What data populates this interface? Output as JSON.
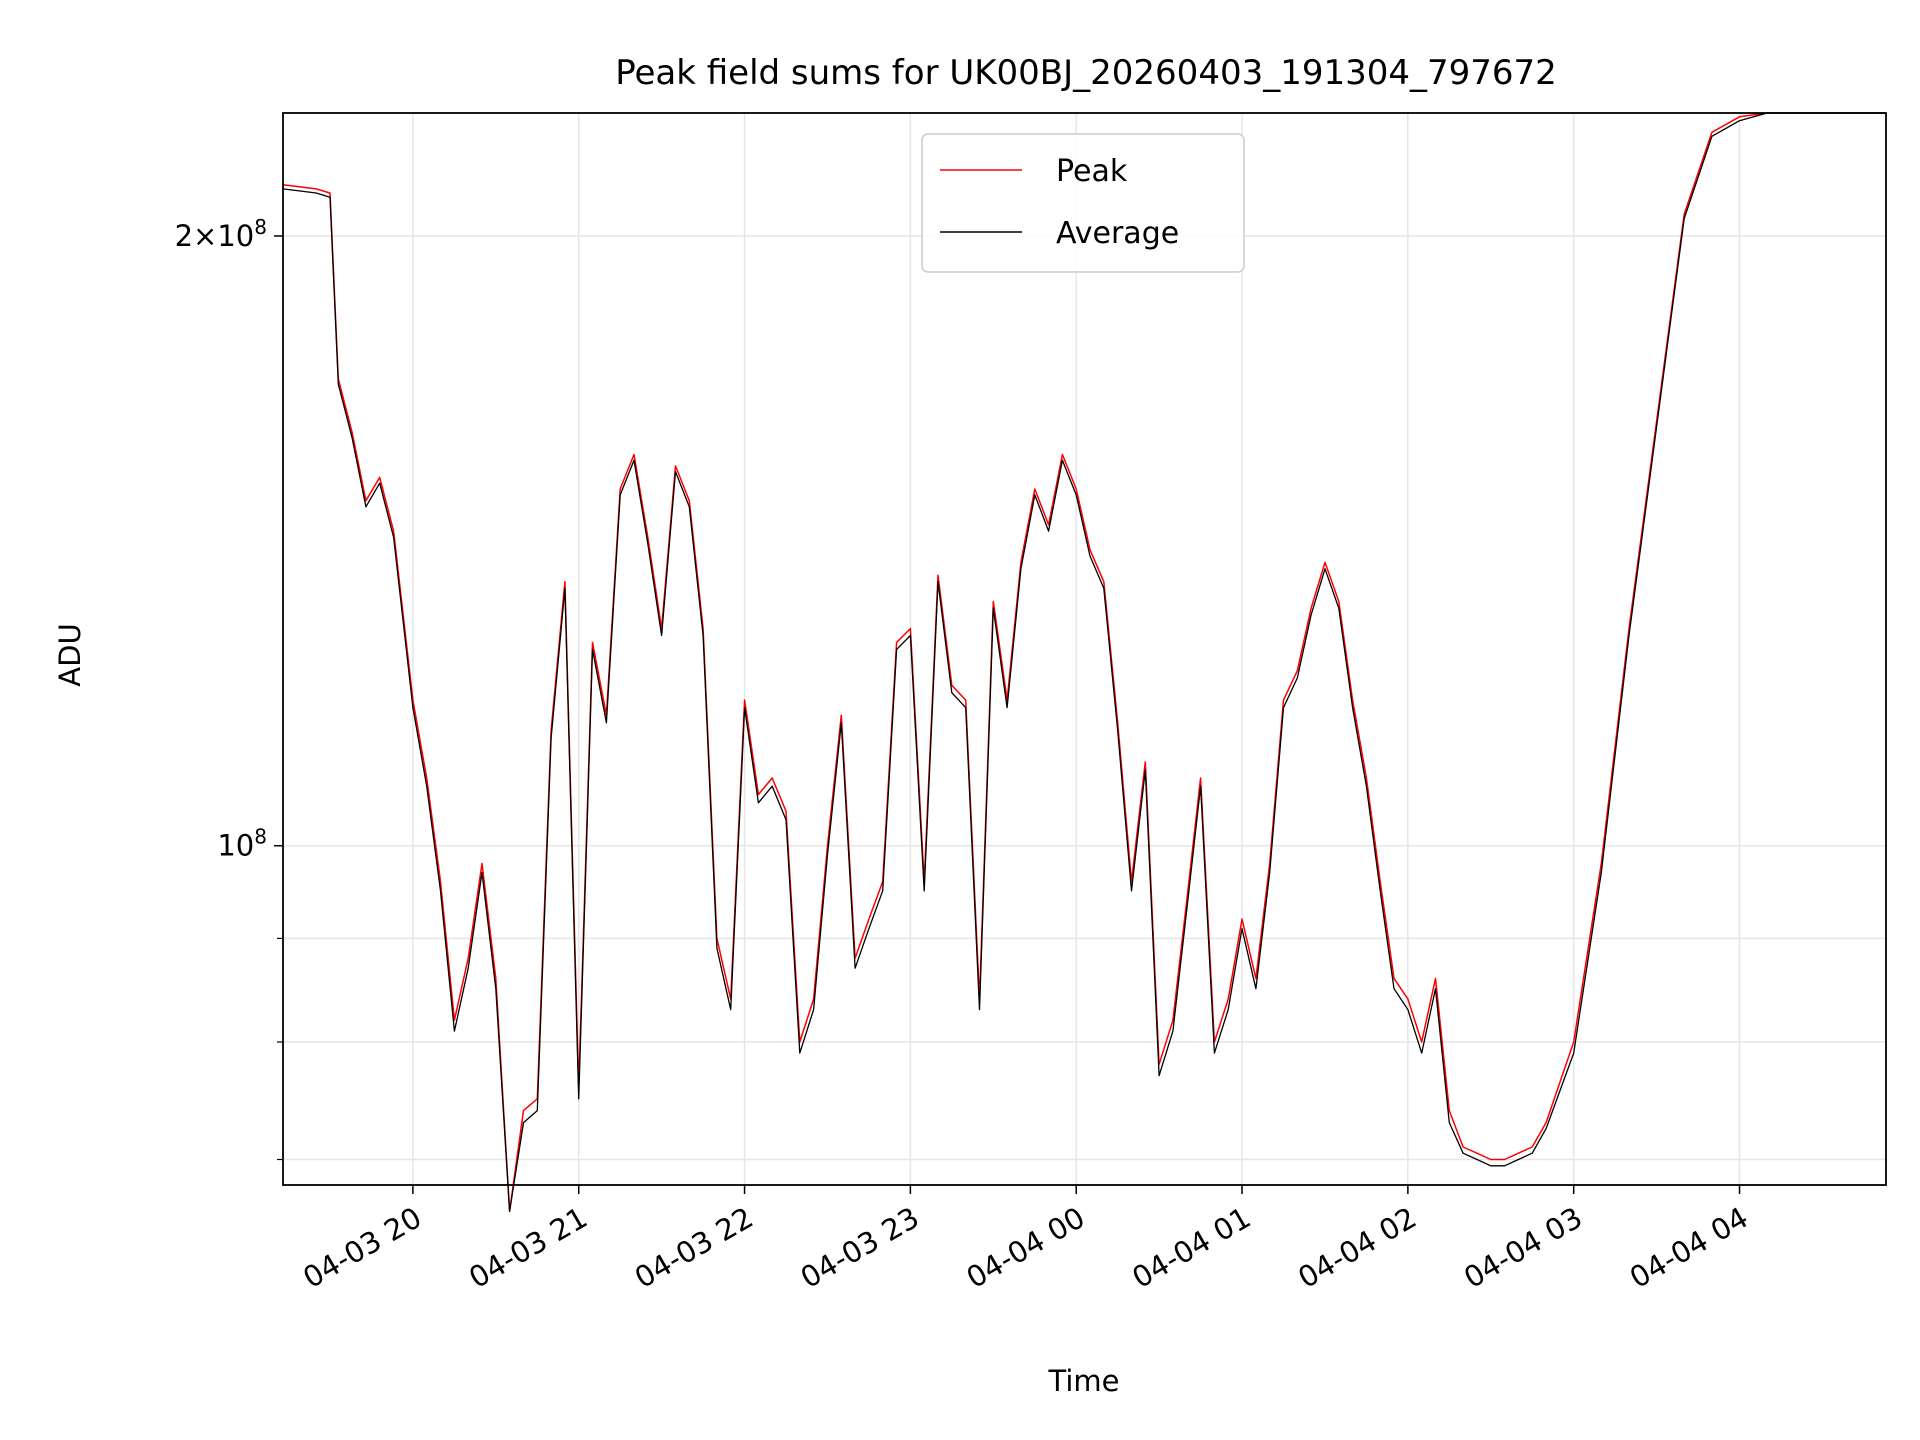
{
  "chart_data": {
    "type": "line",
    "title": "Peak field sums for UK00BJ_20260403_191304_797672",
    "xlabel": "Time",
    "ylabel": "ADU",
    "yscale": "log",
    "grid": true,
    "legend_position": "top-center",
    "xlim": [
      "2026-04-03 19:13",
      "2026-04-04 04:53"
    ],
    "ylim": [
      68000000,
      230000000
    ],
    "x_ticks": [
      "04-03 20",
      "04-03 21",
      "04-03 22",
      "04-03 23",
      "04-04 00",
      "04-04 01",
      "04-04 02",
      "04-04 03",
      "04-04 04"
    ],
    "y_tick_labels": [
      {
        "value": 100000000,
        "mantissa": "",
        "exp": "8"
      },
      {
        "value": 200000000,
        "mantissa": "2",
        "exp": "8"
      }
    ],
    "y_minor_ticks": [
      70000000,
      80000000,
      90000000
    ],
    "series": [
      {
        "name": "Peak",
        "color": "#ff0000",
        "x": [
          "19:13",
          "19:25",
          "19:30",
          "19:33",
          "19:38",
          "19:43",
          "19:48",
          "19:53",
          "20:00",
          "20:05",
          "20:10",
          "20:15",
          "20:20",
          "20:25",
          "20:30",
          "20:35",
          "20:40",
          "20:45",
          "20:50",
          "20:55",
          "21:00",
          "21:05",
          "21:10",
          "21:15",
          "21:20",
          "21:25",
          "21:30",
          "21:35",
          "21:40",
          "21:45",
          "21:50",
          "21:55",
          "22:00",
          "22:05",
          "22:10",
          "22:15",
          "22:20",
          "22:25",
          "22:30",
          "22:35",
          "22:40",
          "22:45",
          "22:50",
          "22:55",
          "23:00",
          "23:05",
          "23:10",
          "23:15",
          "23:20",
          "23:25",
          "23:30",
          "23:35",
          "23:40",
          "23:45",
          "23:50",
          "23:55",
          "00:00",
          "00:05",
          "00:10",
          "00:15",
          "00:20",
          "00:25",
          "00:30",
          "00:35",
          "00:40",
          "00:45",
          "00:50",
          "00:55",
          "01:00",
          "01:05",
          "01:10",
          "01:15",
          "01:20",
          "01:25",
          "01:30",
          "01:35",
          "01:40",
          "01:45",
          "01:50",
          "01:55",
          "02:00",
          "02:05",
          "02:10",
          "02:15",
          "02:20",
          "02:25",
          "02:30",
          "02:35",
          "02:40",
          "02:45",
          "02:50",
          "03:00",
          "03:10",
          "03:20",
          "03:30",
          "03:40",
          "03:50",
          "04:00",
          "04:10",
          "04:20",
          "04:30",
          "04:37",
          "04:43",
          "04:53"
        ],
        "y": [
          212000000,
          211000000,
          210000000,
          170000000,
          160000000,
          148000000,
          152000000,
          143000000,
          118000000,
          108000000,
          96000000,
          82000000,
          88000000,
          98000000,
          86000000,
          66000000,
          74000000,
          75000000,
          114000000,
          135000000,
          76000000,
          126000000,
          116000000,
          150000000,
          156000000,
          142000000,
          128000000,
          154000000,
          148000000,
          128000000,
          90000000,
          84000000,
          118000000,
          106000000,
          108000000,
          104000000,
          80000000,
          84000000,
          100000000,
          116000000,
          88000000,
          92000000,
          96000000,
          126000000,
          128000000,
          96000000,
          136000000,
          120000000,
          118000000,
          84000000,
          132000000,
          118000000,
          138000000,
          150000000,
          144000000,
          156000000,
          150000000,
          140000000,
          135000000,
          115000000,
          96000000,
          110000000,
          78000000,
          82000000,
          94000000,
          108000000,
          80000000,
          84000000,
          92000000,
          86000000,
          98000000,
          118000000,
          122000000,
          131000000,
          138000000,
          132000000,
          118000000,
          108000000,
          96000000,
          86000000,
          84000000,
          80000000,
          86000000,
          74000000,
          71000000,
          70500000,
          70000000,
          70000000,
          70500000,
          71000000,
          73000000,
          80000000,
          98000000,
          128000000,
          162000000,
          205000000,
          225000000,
          229000000,
          230000000,
          230000000,
          230000000,
          230000000,
          230000000,
          230000000
        ]
      },
      {
        "name": "Average",
        "color": "#000000",
        "x": [
          "19:13",
          "19:25",
          "19:30",
          "19:33",
          "19:38",
          "19:43",
          "19:48",
          "19:53",
          "20:00",
          "20:05",
          "20:10",
          "20:15",
          "20:20",
          "20:25",
          "20:30",
          "20:35",
          "20:40",
          "20:45",
          "20:50",
          "20:55",
          "21:00",
          "21:05",
          "21:10",
          "21:15",
          "21:20",
          "21:25",
          "21:30",
          "21:35",
          "21:40",
          "21:45",
          "21:50",
          "21:55",
          "22:00",
          "22:05",
          "22:10",
          "22:15",
          "22:20",
          "22:25",
          "22:30",
          "22:35",
          "22:40",
          "22:45",
          "22:50",
          "22:55",
          "23:00",
          "23:05",
          "23:10",
          "23:15",
          "23:20",
          "23:25",
          "23:30",
          "23:35",
          "23:40",
          "23:45",
          "23:50",
          "23:55",
          "00:00",
          "00:05",
          "00:10",
          "00:15",
          "00:20",
          "00:25",
          "00:30",
          "00:35",
          "00:40",
          "00:45",
          "00:50",
          "00:55",
          "01:00",
          "01:05",
          "01:10",
          "01:15",
          "01:20",
          "01:25",
          "01:30",
          "01:35",
          "01:40",
          "01:45",
          "01:50",
          "01:55",
          "02:00",
          "02:05",
          "02:10",
          "02:15",
          "02:20",
          "02:25",
          "02:30",
          "02:35",
          "02:40",
          "02:45",
          "02:50",
          "03:00",
          "03:10",
          "03:20",
          "03:30",
          "03:40",
          "03:50",
          "04:00",
          "04:10",
          "04:20",
          "04:30",
          "04:37",
          "04:43",
          "04:53"
        ],
        "y": [
          211000000,
          210000000,
          209000000,
          169000000,
          159000000,
          147000000,
          151000000,
          142000000,
          117000000,
          107000000,
          95000000,
          81000000,
          87000000,
          97000000,
          85000000,
          66000000,
          73000000,
          74000000,
          113000000,
          134000000,
          75000000,
          125000000,
          115000000,
          149000000,
          155000000,
          141000000,
          127000000,
          153000000,
          147000000,
          127000000,
          89000000,
          83000000,
          117000000,
          105000000,
          107000000,
          103000000,
          79000000,
          83000000,
          99000000,
          115000000,
          87000000,
          91000000,
          95000000,
          125000000,
          127000000,
          95000000,
          135000000,
          119000000,
          117000000,
          83000000,
          131000000,
          117000000,
          137000000,
          149000000,
          143000000,
          155000000,
          149000000,
          139000000,
          134000000,
          114000000,
          95000000,
          109000000,
          77000000,
          81000000,
          93000000,
          107000000,
          79000000,
          83000000,
          91000000,
          85000000,
          97000000,
          117000000,
          121000000,
          130000000,
          137000000,
          131000000,
          117000000,
          107000000,
          95000000,
          85000000,
          83000000,
          79000000,
          85000000,
          73000000,
          70500000,
          70000000,
          69500000,
          69500000,
          70000000,
          70500000,
          72500000,
          79000000,
          97000000,
          127000000,
          161000000,
          204000000,
          224000000,
          228000000,
          230000000,
          230000000,
          230000000,
          230000000,
          230000000,
          230000000
        ]
      }
    ]
  }
}
